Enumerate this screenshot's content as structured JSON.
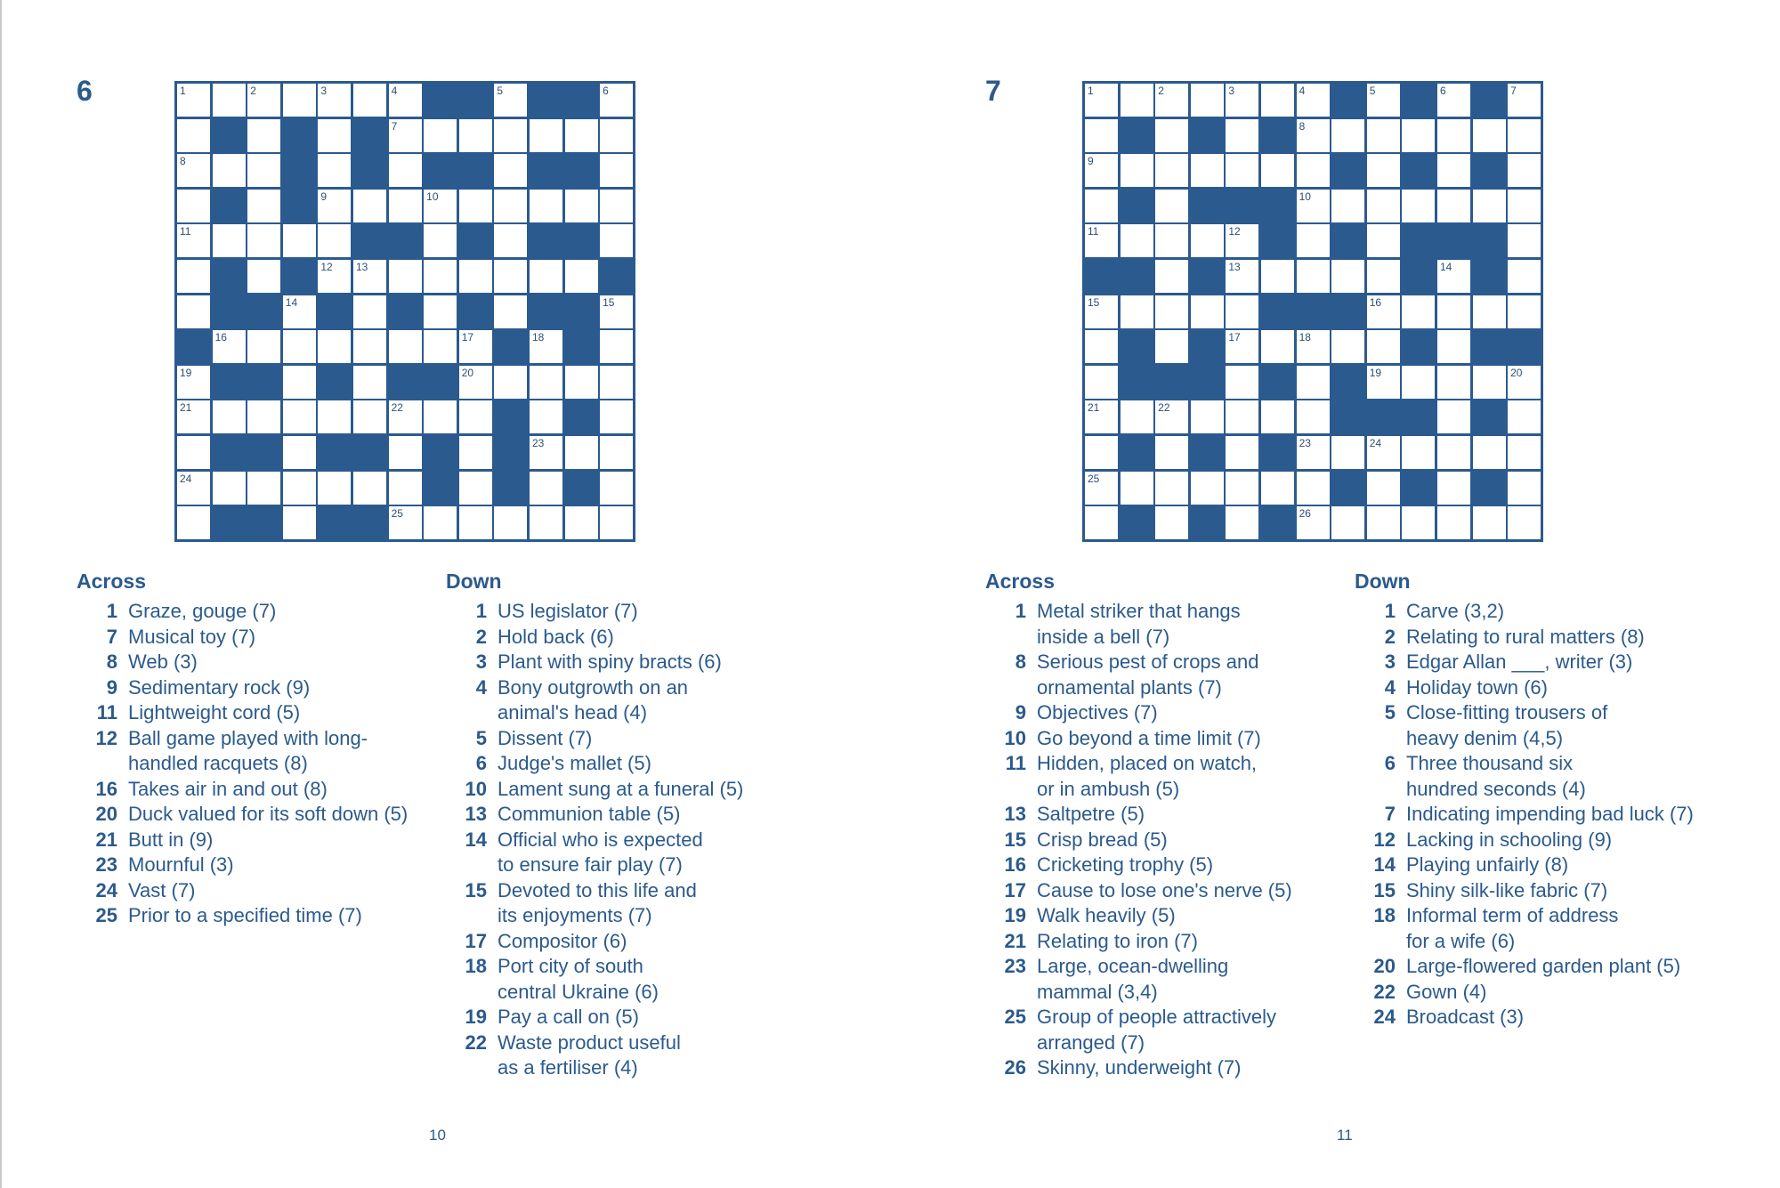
{
  "colors": {
    "grid_blue": "#2b5a8f",
    "text_blue": "#2b5a8c"
  },
  "puzzles": [
    {
      "number": "6",
      "page_number": "10",
      "grid": [
        ".......##.##.",
        ".#.#.#.......",
        "...#.#.##.##.",
        ".#.#.........",
        ".....##.#.##.",
        ".#.#........#",
        ".##.#.#.#.##.",
        "#........#.#.",
        ".##.#.##.....",
        ".........#.#.",
        ".##.##.#.#...",
        ".......#.#.#.",
        ".##.##......."
      ],
      "across_heading": "Across",
      "down_heading": "Down",
      "across": [
        {
          "num": "1",
          "text": "Graze, gouge (7)"
        },
        {
          "num": "7",
          "text": "Musical toy (7)"
        },
        {
          "num": "8",
          "text": "Web (3)"
        },
        {
          "num": "9",
          "text": "Sedimentary rock (9)"
        },
        {
          "num": "11",
          "text": "Lightweight cord (5)"
        },
        {
          "num": "12",
          "text": "Ball game played with long-\nhandled racquets (8)"
        },
        {
          "num": "16",
          "text": "Takes air in and out (8)"
        },
        {
          "num": "20",
          "text": "Duck valued for its soft down (5)"
        },
        {
          "num": "21",
          "text": "Butt in (9)"
        },
        {
          "num": "23",
          "text": "Mournful (3)"
        },
        {
          "num": "24",
          "text": "Vast (7)"
        },
        {
          "num": "25",
          "text": "Prior to a specified time (7)"
        }
      ],
      "down": [
        {
          "num": "1",
          "text": "US legislator (7)"
        },
        {
          "num": "2",
          "text": "Hold back (6)"
        },
        {
          "num": "3",
          "text": "Plant with spiny bracts (6)"
        },
        {
          "num": "4",
          "text": "Bony outgrowth on an\nanimal's head (4)"
        },
        {
          "num": "5",
          "text": "Dissent (7)"
        },
        {
          "num": "6",
          "text": "Judge's mallet (5)"
        },
        {
          "num": "10",
          "text": "Lament sung at a funeral (5)"
        },
        {
          "num": "13",
          "text": "Communion table (5)"
        },
        {
          "num": "14",
          "text": "Official who is expected\nto ensure fair play (7)"
        },
        {
          "num": "15",
          "text": "Devoted to this life and\nits enjoyments (7)"
        },
        {
          "num": "17",
          "text": "Compositor (6)"
        },
        {
          "num": "18",
          "text": "Port city of south\ncentral Ukraine (6)"
        },
        {
          "num": "19",
          "text": "Pay a call on (5)"
        },
        {
          "num": "22",
          "text": "Waste product useful\nas a fertiliser (4)"
        }
      ]
    },
    {
      "number": "7",
      "page_number": "11",
      "grid": [
        ".......#.#.#.",
        ".#.#.#.......",
        ".......#.#.#.",
        ".#.###.......",
        ".....#.#.###.",
        "##.#.....#.#.",
        ".....###.....",
        ".#.#.....#.##",
        ".###.#.#.....",
        ".......###.#.",
        ".#.#.#.......",
        ".......#.#.#.",
        ".#.#.#......."
      ],
      "across_heading": "Across",
      "down_heading": "Down",
      "across": [
        {
          "num": "1",
          "text": "Metal striker that hangs\ninside a bell (7)"
        },
        {
          "num": "8",
          "text": "Serious pest of crops and\nornamental plants (7)"
        },
        {
          "num": "9",
          "text": "Objectives (7)"
        },
        {
          "num": "10",
          "text": "Go beyond a time limit (7)"
        },
        {
          "num": "11",
          "text": "Hidden, placed on watch,\nor in ambush (5)"
        },
        {
          "num": "13",
          "text": "Saltpetre (5)"
        },
        {
          "num": "15",
          "text": "Crisp bread (5)"
        },
        {
          "num": "16",
          "text": "Cricketing trophy (5)"
        },
        {
          "num": "17",
          "text": "Cause to lose one's nerve (5)"
        },
        {
          "num": "19",
          "text": "Walk heavily (5)"
        },
        {
          "num": "21",
          "text": "Relating to iron (7)"
        },
        {
          "num": "23",
          "text": "Large, ocean-dwelling\nmammal (3,4)"
        },
        {
          "num": "25",
          "text": "Group of people attractively\narranged (7)"
        },
        {
          "num": "26",
          "text": "Skinny, underweight (7)"
        }
      ],
      "down": [
        {
          "num": "1",
          "text": "Carve (3,2)"
        },
        {
          "num": "2",
          "text": "Relating to rural matters (8)"
        },
        {
          "num": "3",
          "text": "Edgar Allan ___, writer (3)"
        },
        {
          "num": "4",
          "text": "Holiday town (6)"
        },
        {
          "num": "5",
          "text": "Close-fitting trousers of\nheavy denim (4,5)"
        },
        {
          "num": "6",
          "text": "Three thousand six\nhundred seconds (4)"
        },
        {
          "num": "7",
          "text": "Indicating impending bad luck (7)"
        },
        {
          "num": "12",
          "text": "Lacking in schooling (9)"
        },
        {
          "num": "14",
          "text": "Playing unfairly (8)"
        },
        {
          "num": "15",
          "text": "Shiny silk-like fabric (7)"
        },
        {
          "num": "18",
          "text": "Informal term of address\nfor a wife (6)"
        },
        {
          "num": "20",
          "text": "Large-flowered garden plant (5)"
        },
        {
          "num": "22",
          "text": "Gown (4)"
        },
        {
          "num": "24",
          "text": "Broadcast (3)"
        }
      ]
    }
  ]
}
